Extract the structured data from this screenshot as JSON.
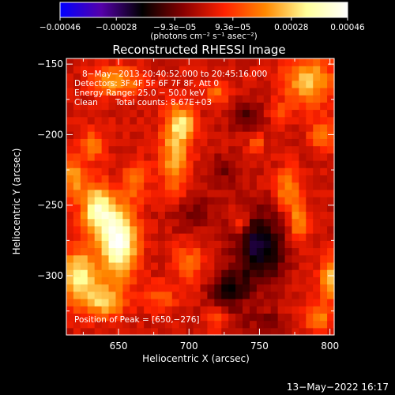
{
  "colorbar": {
    "ticks": [
      "−0.00046",
      "−0.00028",
      "−9.3e−05",
      "9.3e−05",
      "0.00028",
      "0.00046"
    ],
    "values": [
      -0.00046,
      -0.00028,
      -9.3e-05,
      9.3e-05,
      0.00028,
      0.00046
    ],
    "range": [
      -0.00046,
      0.00046
    ],
    "unit_label": "(photons cm⁻² s⁻¹ asec⁻²)",
    "palette": [
      "#0000ff",
      "#5500aa",
      "#000000",
      "#880000",
      "#ff2200",
      "#ff8800",
      "#ffff99",
      "#ffffff"
    ]
  },
  "chart_data": {
    "type": "heatmap",
    "title": "Reconstructed RHESSI Image",
    "xlabel": "Heliocentric X (arcsec)",
    "ylabel": "Heliocentric Y (arcsec)",
    "xlim": [
      613,
      803
    ],
    "ylim": [
      -342,
      -146
    ],
    "xticks": [
      650,
      700,
      750,
      800
    ],
    "yticks": [
      -150,
      -200,
      -250,
      -300
    ],
    "peak": [
      650,
      -276
    ],
    "blobs": [
      {
        "x": 650,
        "y": -276,
        "sx": 9,
        "sy": 17,
        "amp": 1.0
      },
      {
        "x": 635,
        "y": -252,
        "sx": 8,
        "sy": 12,
        "amp": 0.75
      },
      {
        "x": 622,
        "y": -300,
        "sx": 9,
        "sy": 13,
        "amp": 0.72
      },
      {
        "x": 640,
        "y": -318,
        "sx": 10,
        "sy": 8,
        "amp": 0.55
      },
      {
        "x": 618,
        "y": -230,
        "sx": 5,
        "sy": 10,
        "amp": 0.5
      },
      {
        "x": 648,
        "y": -162,
        "sx": 12,
        "sy": 7,
        "amp": 0.5
      },
      {
        "x": 632,
        "y": -208,
        "sx": 6,
        "sy": 8,
        "amp": 0.35
      },
      {
        "x": 662,
        "y": -232,
        "sx": 6,
        "sy": 10,
        "amp": 0.32
      },
      {
        "x": 690,
        "y": -212,
        "sx": 7,
        "sy": 22,
        "amp": 0.52
      },
      {
        "x": 697,
        "y": -192,
        "sx": 6,
        "sy": 8,
        "amp": 0.45
      },
      {
        "x": 700,
        "y": -290,
        "sx": 8,
        "sy": 10,
        "amp": 0.3
      },
      {
        "x": 680,
        "y": -315,
        "sx": 8,
        "sy": 7,
        "amp": 0.25
      },
      {
        "x": 720,
        "y": -170,
        "sx": 6,
        "sy": 6,
        "amp": 0.3
      },
      {
        "x": 748,
        "y": -205,
        "sx": 4,
        "sy": 5,
        "amp": 0.28
      },
      {
        "x": 765,
        "y": -185,
        "sx": 5,
        "sy": 5,
        "amp": 0.25
      },
      {
        "x": 785,
        "y": -162,
        "sx": 12,
        "sy": 12,
        "amp": 0.55
      },
      {
        "x": 795,
        "y": -200,
        "sx": 7,
        "sy": 8,
        "amp": 0.32
      },
      {
        "x": 770,
        "y": -238,
        "sx": 6,
        "sy": 10,
        "amp": 0.42
      },
      {
        "x": 778,
        "y": -262,
        "sx": 5,
        "sy": 9,
        "amp": 0.45
      },
      {
        "x": 800,
        "y": -302,
        "sx": 5,
        "sy": 11,
        "amp": 0.55
      },
      {
        "x": 792,
        "y": -330,
        "sx": 6,
        "sy": 7,
        "amp": 0.4
      },
      {
        "x": 748,
        "y": -335,
        "sx": 6,
        "sy": 5,
        "amp": 0.28
      },
      {
        "x": 737,
        "y": -262,
        "sx": 4,
        "sy": 6,
        "amp": 0.28
      },
      {
        "x": 720,
        "y": -330,
        "sx": 5,
        "sy": 6,
        "amp": 0.22
      }
    ],
    "negative": [
      {
        "x": 750,
        "y": -280,
        "sx": 12,
        "sy": 18,
        "amp": -0.55
      },
      {
        "x": 728,
        "y": -310,
        "sx": 10,
        "sy": 10,
        "amp": -0.35
      },
      {
        "x": 750,
        "y": -335,
        "sx": 10,
        "sy": 6,
        "amp": -0.4
      },
      {
        "x": 700,
        "y": -255,
        "sx": 12,
        "sy": 10,
        "amp": -0.2
      },
      {
        "x": 740,
        "y": -185,
        "sx": 9,
        "sy": 8,
        "amp": -0.25
      },
      {
        "x": 725,
        "y": -225,
        "sx": 6,
        "sy": 8,
        "amp": -0.2
      }
    ]
  },
  "annotations": {
    "time": "8−May−2013 20:40:52.000 to 20:45:16.000",
    "detectors": "Detectors: 3F 4F 5F 6F 7F 8F, Att 0",
    "energy": "Energy Range: 25.0 − 50.0 keV",
    "method": "Clean",
    "counts": "Total counts: 8.67E+03",
    "peak": "Position of Peak = [650,−276]"
  },
  "footer_date": "13−May−2022 16:17"
}
